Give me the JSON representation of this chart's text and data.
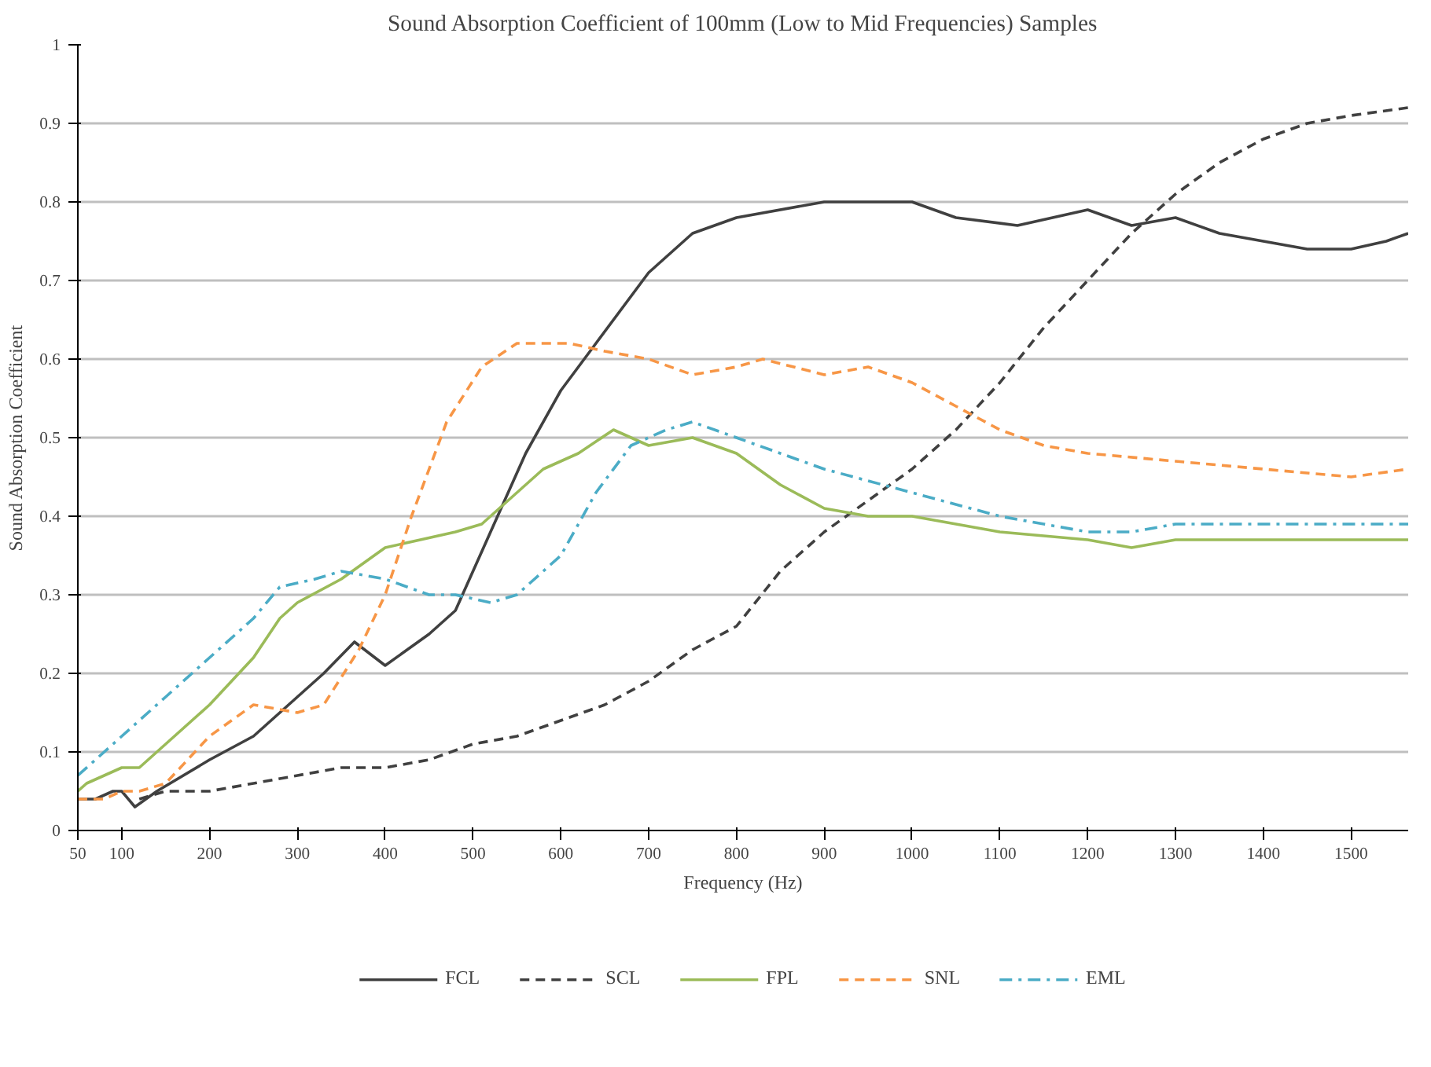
{
  "chart_data": {
    "type": "line",
    "title": "Sound Absorption Coefficient of 100mm (Low to Mid Frequencies) Samples",
    "xlabel": "Frequency (Hz)",
    "ylabel": "Sound Absorption Coefficient",
    "xlim": [
      50,
      1565
    ],
    "xticks": [
      50,
      100,
      200,
      300,
      400,
      500,
      600,
      700,
      800,
      900,
      1000,
      1100,
      1200,
      1300,
      1400,
      1500
    ],
    "ylim": [
      0,
      1
    ],
    "yticks": [
      0,
      0.1,
      0.2,
      0.3,
      0.4,
      0.5,
      0.6,
      0.7,
      0.8,
      0.9,
      1
    ],
    "grid": "y",
    "legend": "bottom",
    "marker": "none",
    "series": [
      {
        "name": "FCL",
        "color": "#404040",
        "line_style": "solid",
        "x": [
          50,
          70,
          90,
          100,
          115,
          140,
          200,
          250,
          290,
          330,
          365,
          400,
          450,
          480,
          520,
          560,
          600,
          640,
          700,
          750,
          800,
          900,
          950,
          1000,
          1050,
          1120,
          1200,
          1250,
          1300,
          1350,
          1400,
          1450,
          1500,
          1540,
          1565
        ],
        "values": [
          0.04,
          0.04,
          0.05,
          0.05,
          0.03,
          0.05,
          0.09,
          0.12,
          0.16,
          0.2,
          0.24,
          0.21,
          0.25,
          0.28,
          0.38,
          0.48,
          0.56,
          0.62,
          0.71,
          0.76,
          0.78,
          0.8,
          0.8,
          0.8,
          0.78,
          0.77,
          0.79,
          0.77,
          0.78,
          0.76,
          0.75,
          0.74,
          0.74,
          0.75,
          0.76
        ]
      },
      {
        "name": "SCL",
        "color": "#404040",
        "line_style": "dashed",
        "x": [
          120,
          150,
          200,
          250,
          300,
          350,
          400,
          450,
          500,
          550,
          600,
          650,
          700,
          750,
          800,
          850,
          900,
          950,
          1000,
          1050,
          1100,
          1150,
          1200,
          1250,
          1300,
          1350,
          1400,
          1450,
          1500,
          1565
        ],
        "values": [
          0.04,
          0.05,
          0.05,
          0.06,
          0.07,
          0.08,
          0.08,
          0.09,
          0.11,
          0.12,
          0.14,
          0.16,
          0.19,
          0.23,
          0.26,
          0.33,
          0.38,
          0.42,
          0.46,
          0.51,
          0.57,
          0.64,
          0.7,
          0.76,
          0.81,
          0.85,
          0.88,
          0.9,
          0.91,
          0.92
        ]
      },
      {
        "name": "FPL",
        "color": "#9bbb59",
        "line_style": "solid",
        "x": [
          50,
          60,
          80,
          100,
          120,
          150,
          200,
          250,
          280,
          300,
          350,
          400,
          440,
          480,
          510,
          540,
          580,
          620,
          660,
          700,
          750,
          800,
          850,
          900,
          950,
          1000,
          1100,
          1200,
          1250,
          1300,
          1400,
          1500,
          1565
        ],
        "values": [
          0.05,
          0.06,
          0.07,
          0.08,
          0.08,
          0.11,
          0.16,
          0.22,
          0.27,
          0.29,
          0.32,
          0.36,
          0.37,
          0.38,
          0.39,
          0.42,
          0.46,
          0.48,
          0.51,
          0.49,
          0.5,
          0.48,
          0.44,
          0.41,
          0.4,
          0.4,
          0.38,
          0.37,
          0.36,
          0.37,
          0.37,
          0.37,
          0.37
        ]
      },
      {
        "name": "SNL",
        "color": "#f79646",
        "line_style": "dashed",
        "x": [
          50,
          80,
          100,
          120,
          150,
          200,
          250,
          300,
          330,
          370,
          400,
          430,
          470,
          510,
          550,
          580,
          610,
          650,
          700,
          750,
          800,
          830,
          900,
          950,
          1000,
          1050,
          1100,
          1150,
          1200,
          1300,
          1400,
          1500,
          1565
        ],
        "values": [
          0.04,
          0.04,
          0.05,
          0.05,
          0.06,
          0.12,
          0.16,
          0.15,
          0.16,
          0.23,
          0.3,
          0.4,
          0.52,
          0.59,
          0.62,
          0.62,
          0.62,
          0.61,
          0.6,
          0.58,
          0.59,
          0.6,
          0.58,
          0.59,
          0.57,
          0.54,
          0.51,
          0.49,
          0.48,
          0.47,
          0.46,
          0.45,
          0.46
        ]
      },
      {
        "name": "EML",
        "color": "#4bacc6",
        "line_style": "dashdot",
        "x": [
          50,
          70,
          100,
          150,
          200,
          250,
          280,
          320,
          350,
          400,
          450,
          480,
          520,
          550,
          600,
          640,
          680,
          720,
          750,
          800,
          850,
          900,
          1000,
          1100,
          1200,
          1250,
          1300,
          1400,
          1500,
          1565
        ],
        "values": [
          0.07,
          0.09,
          0.12,
          0.17,
          0.22,
          0.27,
          0.31,
          0.32,
          0.33,
          0.32,
          0.3,
          0.3,
          0.29,
          0.3,
          0.35,
          0.43,
          0.49,
          0.51,
          0.52,
          0.5,
          0.48,
          0.46,
          0.43,
          0.4,
          0.38,
          0.38,
          0.39,
          0.39,
          0.39,
          0.39
        ]
      }
    ]
  }
}
